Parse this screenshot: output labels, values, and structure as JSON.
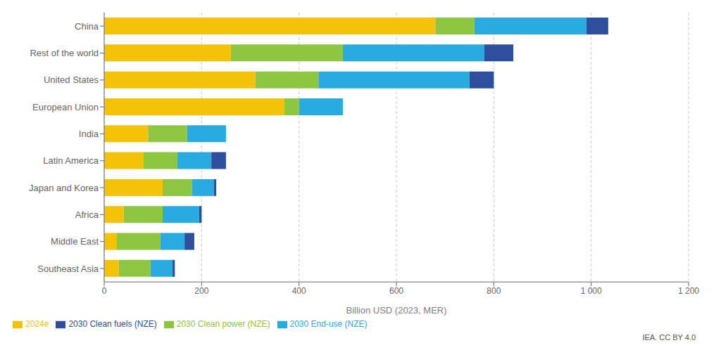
{
  "chart_data": {
    "type": "bar",
    "orientation": "horizontal",
    "stacked": true,
    "categories": [
      "China",
      "Rest of the world",
      "United States",
      "European Union",
      "India",
      "Latin America",
      "Japan and Korea",
      "Africa",
      "Middle East",
      "Southeast Asia"
    ],
    "series": [
      {
        "name": "2024e",
        "color": "#f5c20a",
        "values": [
          680,
          260,
          310,
          370,
          90,
          80,
          120,
          40,
          25,
          30
        ]
      },
      {
        "name": "2030 Clean power (NZE)",
        "color": "#8dc641",
        "values": [
          80,
          230,
          130,
          30,
          80,
          70,
          60,
          80,
          90,
          65
        ]
      },
      {
        "name": "2030 End-use (NZE)",
        "color": "#29abe2",
        "values": [
          230,
          290,
          310,
          90,
          80,
          70,
          45,
          75,
          50,
          45
        ]
      },
      {
        "name": "2030 Clean fuels (NZE)",
        "color": "#2e4f9e",
        "values": [
          45,
          60,
          50,
          0,
          0,
          30,
          5,
          5,
          20,
          5
        ]
      }
    ],
    "xlabel": "Billion USD (2023, MER)",
    "xlim": [
      0,
      1200
    ],
    "xticks": [
      0,
      200,
      400,
      600,
      800,
      {
        "value": 1000,
        "label": "1 000"
      },
      {
        "value": 1200,
        "label": "1 200"
      }
    ],
    "grid": true,
    "legend": "bottom",
    "annotations": [
      "IEA. CC BY 4.0"
    ]
  }
}
